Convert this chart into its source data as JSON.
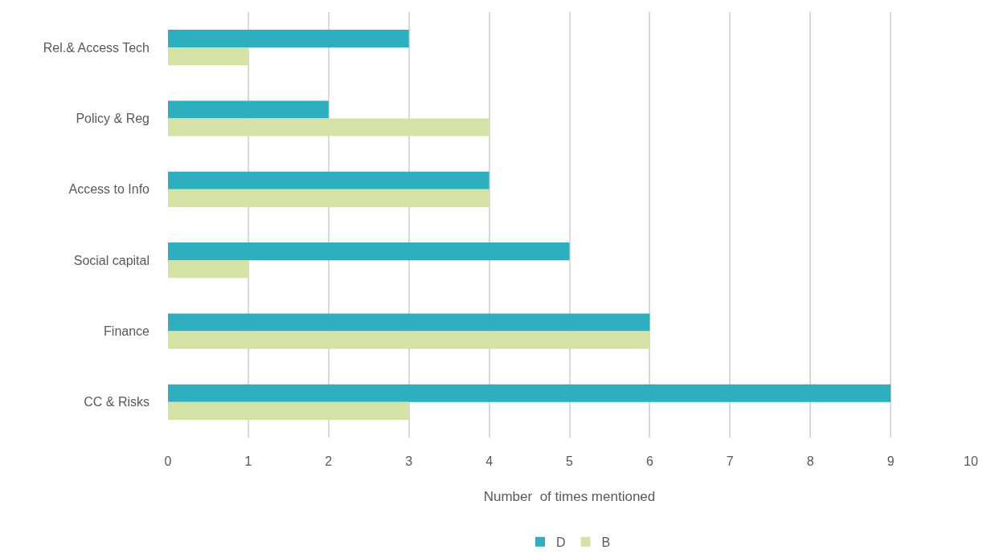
{
  "chart_data": {
    "type": "bar",
    "orientation": "horizontal",
    "categories": [
      "Rel.& Access Tech",
      "Policy & Reg",
      "Access to Info",
      "Social capital",
      "Finance",
      "CC & Risks"
    ],
    "series": [
      {
        "name": "D",
        "color": "#2eafc0",
        "values": [
          3,
          2,
          4,
          5,
          6,
          9
        ]
      },
      {
        "name": "B",
        "color": "#d5e2a6",
        "values": [
          1,
          4,
          4,
          1,
          6,
          3
        ]
      }
    ],
    "xlabel": "Number  of times mentioned",
    "xlim": [
      0,
      10
    ],
    "xticks": [
      0,
      1,
      2,
      3,
      4,
      5,
      6,
      7,
      8,
      9,
      10
    ],
    "grid": "x",
    "legend": "bottom"
  }
}
